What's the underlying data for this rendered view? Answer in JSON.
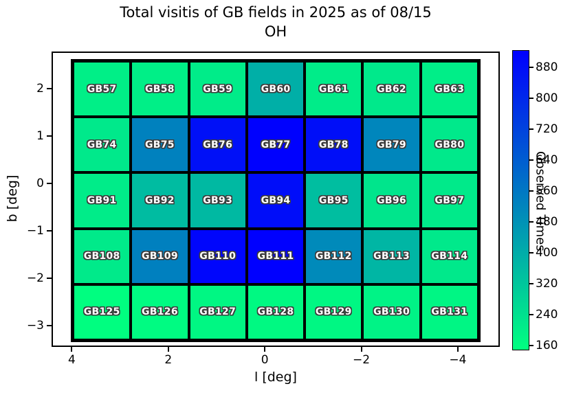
{
  "title_line1": "Total visitis of GB fields in 2025 as of 08/15",
  "title_line2": "OH",
  "chart_data": {
    "type": "heatmap",
    "title": "Total visitis of GB fields in 2025 as of 08/15 OH",
    "xlabel": "l [deg]",
    "ylabel": "b [deg]",
    "colorbar_label": "Observed Times",
    "colormap": "winter_r",
    "colormap_low_hex": "#00ff80",
    "colormap_high_hex": "#0000ff",
    "vmin": 147,
    "vmax": 924,
    "xlim": [
      4.42,
      -4.87
    ],
    "ylim": [
      2.78,
      -3.45
    ],
    "x_axis_inverted": true,
    "x_tick_values": [
      4,
      2,
      0,
      -2,
      -4
    ],
    "y_tick_values": [
      2,
      1,
      0,
      -1,
      -2,
      -3
    ],
    "colorbar_tick_values": [
      880,
      800,
      720,
      640,
      560,
      480,
      400,
      320,
      240,
      160
    ],
    "grid_shape": {
      "columns": 7,
      "rows": 5
    },
    "cell_size_deg": 1.2,
    "col_centers_l": [
      3.4,
      2.2,
      1.0,
      -0.2,
      -1.4,
      -2.6,
      -3.8
    ],
    "row_centers_b": [
      2.0,
      0.8,
      -0.4,
      -1.6,
      -2.8
    ],
    "rows": [
      {
        "fields": [
          "GB57",
          "GB58",
          "GB59",
          "GB60",
          "GB61",
          "GB62",
          "GB63"
        ],
        "values": [
          195,
          195,
          205,
          390,
          205,
          215,
          200
        ]
      },
      {
        "fields": [
          "GB74",
          "GB75",
          "GB76",
          "GB77",
          "GB78",
          "GB79",
          "GB80"
        ],
        "values": [
          215,
          530,
          875,
          920,
          880,
          515,
          215
        ]
      },
      {
        "fields": [
          "GB91",
          "GB92",
          "GB93",
          "GB94",
          "GB95",
          "GB96",
          "GB97"
        ],
        "values": [
          205,
          350,
          360,
          885,
          345,
          225,
          210
        ]
      },
      {
        "fields": [
          "GB108",
          "GB109",
          "GB110",
          "GB111",
          "GB112",
          "GB113",
          "GB114"
        ],
        "values": [
          210,
          535,
          905,
          924,
          505,
          370,
          215
        ]
      },
      {
        "fields": [
          "GB125",
          "GB126",
          "GB127",
          "GB128",
          "GB129",
          "GB130",
          "GB131"
        ],
        "values": [
          150,
          160,
          170,
          165,
          170,
          185,
          175
        ]
      }
    ]
  },
  "colors": {
    "background": "#ffffff",
    "cell_border": "#000000",
    "cell_text": "#ffffff",
    "cell_text_outline": "#3c3c3c",
    "axis": "#000000"
  }
}
